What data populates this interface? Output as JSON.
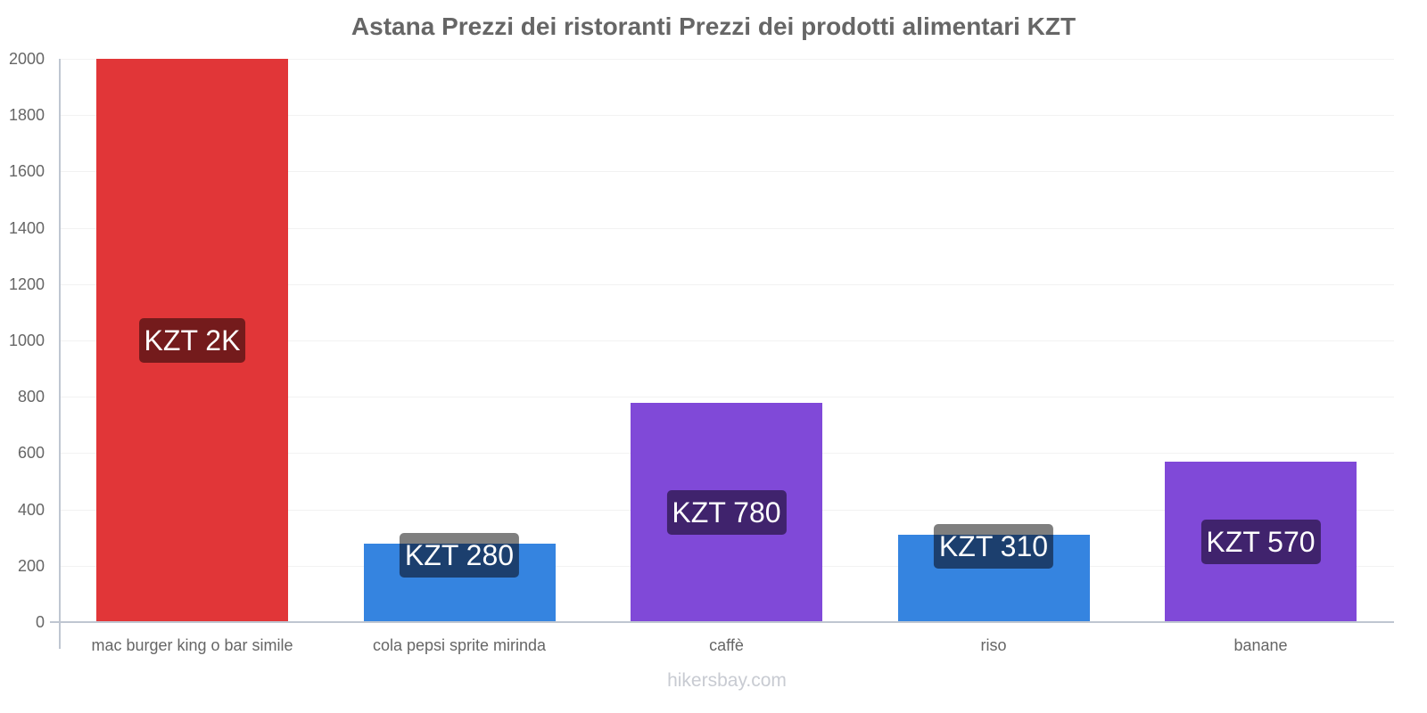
{
  "chart_data": {
    "type": "bar",
    "title": "Astana Prezzi dei ristoranti Prezzi dei prodotti alimentari KZT",
    "xlabel": "",
    "ylabel": "",
    "ylim": [
      0,
      2000
    ],
    "yticks": [
      "0",
      "200",
      "400",
      "600",
      "800",
      "1000",
      "1200",
      "1400",
      "1600",
      "1800",
      "2000"
    ],
    "grid": true,
    "categories": [
      "mac burger king o bar simile",
      "cola pepsi sprite mirinda",
      "caffè",
      "riso",
      "banane"
    ],
    "values": [
      2000,
      280,
      780,
      310,
      570
    ],
    "data_labels": [
      "KZT 2K",
      "KZT 280",
      "KZT 780",
      "KZT 310",
      "KZT 570"
    ],
    "colors": [
      "#e13638",
      "#3584e0",
      "#8049d8",
      "#3584e0",
      "#8049d8"
    ],
    "label_bg_colors": [
      "#741b1c",
      "#1c3f6e",
      "#40236d",
      "#1c3f6e",
      "#40236d"
    ]
  },
  "watermark": "hikersbay.com"
}
